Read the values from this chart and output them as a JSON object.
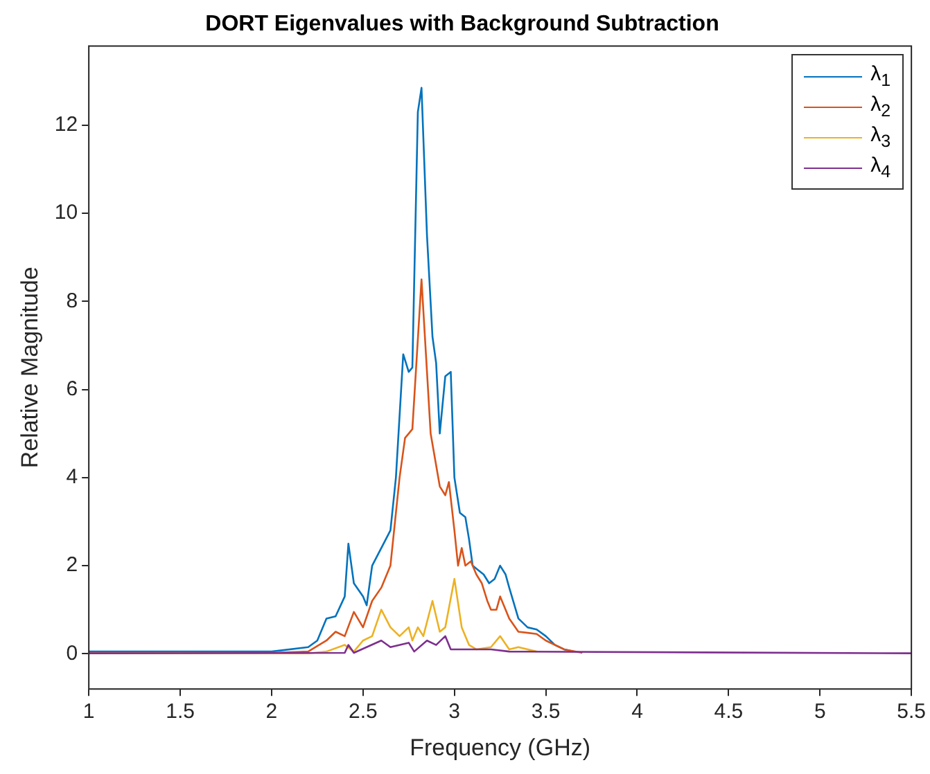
{
  "chart_data": {
    "type": "line",
    "title": "DORT Eigenvalues with Background Subtraction",
    "xlabel": "Frequency (GHz)",
    "ylabel": "Relative Magnitude",
    "xlim": [
      1,
      5.5
    ],
    "xticks": [
      1,
      1.5,
      2,
      2.5,
      3,
      3.5,
      4,
      4.5,
      5,
      5.5
    ],
    "ylim": [
      -0.8,
      13.8
    ],
    "yticks": [
      0,
      2,
      4,
      6,
      8,
      10,
      12
    ],
    "grid": false,
    "legend": "top right",
    "marker": "none",
    "line_style": "solid",
    "series": [
      {
        "name": "λ$_{1}$",
        "color": "#0072bd",
        "x": [
          1,
          2,
          2.2,
          2.25,
          2.3,
          2.35,
          2.4,
          2.42,
          2.45,
          2.5,
          2.52,
          2.55,
          2.6,
          2.65,
          2.68,
          2.72,
          2.75,
          2.77,
          2.8,
          2.82,
          2.85,
          2.88,
          2.9,
          2.92,
          2.95,
          2.98,
          3.0,
          3.03,
          3.06,
          3.08,
          3.1,
          3.13,
          3.16,
          3.19,
          3.22,
          3.25,
          3.28,
          3.3,
          3.35,
          3.4,
          3.45,
          3.5,
          3.55,
          3.6,
          3.65
        ],
        "values": [
          0.05,
          0.05,
          0.15,
          0.3,
          0.8,
          0.85,
          1.3,
          2.5,
          1.6,
          1.3,
          1.1,
          2.0,
          2.4,
          2.8,
          4.0,
          6.8,
          6.4,
          6.5,
          12.3,
          12.85,
          9.5,
          7.2,
          6.6,
          5.0,
          6.3,
          6.4,
          4.0,
          3.2,
          3.1,
          2.6,
          2.0,
          1.9,
          1.8,
          1.6,
          1.7,
          2.0,
          1.8,
          1.5,
          0.8,
          0.6,
          0.55,
          0.4,
          0.2,
          0.1,
          0.05
        ]
      },
      {
        "name": "λ$_{2}$",
        "color": "#d95319",
        "x": [
          1,
          2,
          2.2,
          2.3,
          2.35,
          2.4,
          2.45,
          2.5,
          2.55,
          2.6,
          2.65,
          2.7,
          2.73,
          2.77,
          2.82,
          2.87,
          2.92,
          2.95,
          2.97,
          3.0,
          3.02,
          3.04,
          3.06,
          3.09,
          3.12,
          3.15,
          3.18,
          3.2,
          3.23,
          3.25,
          3.3,
          3.35,
          3.45,
          3.5,
          3.6,
          3.7
        ],
        "values": [
          0.02,
          0.02,
          0.05,
          0.3,
          0.5,
          0.4,
          0.95,
          0.6,
          1.2,
          1.5,
          2.0,
          4.0,
          4.9,
          5.1,
          8.5,
          5.0,
          3.8,
          3.6,
          3.9,
          2.8,
          2.0,
          2.4,
          2.0,
          2.1,
          1.8,
          1.6,
          1.2,
          1.0,
          1.0,
          1.3,
          0.8,
          0.5,
          0.45,
          0.3,
          0.1,
          0.02
        ]
      },
      {
        "name": "λ$_{3}$",
        "color": "#edb120",
        "x": [
          1,
          2.2,
          2.3,
          2.4,
          2.45,
          2.5,
          2.55,
          2.6,
          2.65,
          2.7,
          2.75,
          2.77,
          2.8,
          2.83,
          2.88,
          2.92,
          2.95,
          3.0,
          3.04,
          3.08,
          3.12,
          3.2,
          3.25,
          3.3,
          3.35,
          3.45
        ],
        "values": [
          0.01,
          0.01,
          0.05,
          0.2,
          0.05,
          0.3,
          0.4,
          1.0,
          0.6,
          0.4,
          0.6,
          0.3,
          0.6,
          0.4,
          1.2,
          0.5,
          0.6,
          1.7,
          0.6,
          0.2,
          0.1,
          0.15,
          0.4,
          0.1,
          0.15,
          0.05
        ]
      },
      {
        "name": "λ$_{4}$",
        "color": "#7e2f8e",
        "x": [
          1,
          2.4,
          2.42,
          2.45,
          2.6,
          2.65,
          2.75,
          2.78,
          2.85,
          2.9,
          2.95,
          2.98,
          3.2,
          3.3,
          5.5
        ],
        "values": [
          0.01,
          0.02,
          0.2,
          0.02,
          0.3,
          0.15,
          0.25,
          0.05,
          0.3,
          0.2,
          0.4,
          0.1,
          0.1,
          0.05,
          0.01
        ]
      }
    ]
  }
}
